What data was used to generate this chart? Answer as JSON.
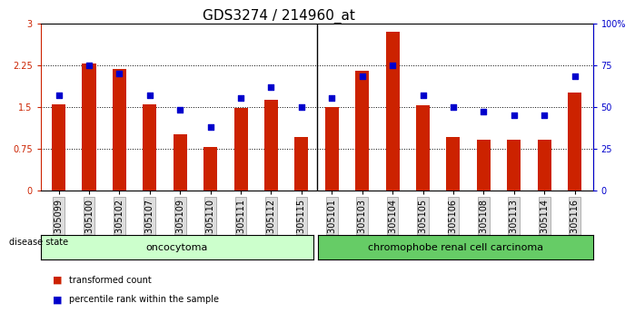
{
  "title": "GDS3274 / 214960_at",
  "samples": [
    "GSM305099",
    "GSM305100",
    "GSM305102",
    "GSM305107",
    "GSM305109",
    "GSM305110",
    "GSM305111",
    "GSM305112",
    "GSM305115",
    "GSM305101",
    "GSM305103",
    "GSM305104",
    "GSM305105",
    "GSM305106",
    "GSM305108",
    "GSM305113",
    "GSM305114",
    "GSM305116"
  ],
  "red_values": [
    1.55,
    2.28,
    2.18,
    1.54,
    1.0,
    0.78,
    1.48,
    1.62,
    0.95,
    1.5,
    2.15,
    2.85,
    1.52,
    0.95,
    0.9,
    0.9,
    0.9,
    1.75
  ],
  "blue_values_pct": [
    57,
    75,
    70,
    57,
    48,
    38,
    55,
    62,
    50,
    55,
    68,
    75,
    57,
    50,
    47,
    45,
    45,
    68
  ],
  "ylim_left": [
    0,
    3
  ],
  "ylim_right": [
    0,
    100
  ],
  "yticks_left": [
    0,
    0.75,
    1.5,
    2.25,
    3
  ],
  "yticks_right": [
    0,
    25,
    50,
    75,
    100
  ],
  "ytick_labels_left": [
    "0",
    "0.75",
    "1.5",
    "2.25",
    "3"
  ],
  "ytick_labels_right": [
    "0",
    "25",
    "50",
    "75",
    "100%"
  ],
  "bar_color": "#cc2200",
  "dot_color": "#0000cc",
  "grid_color": "#000000",
  "bg_color": "#ffffff",
  "oncocytoma_count": 9,
  "chromophobe_count": 9,
  "oncocytoma_color": "#ccffcc",
  "chromophobe_color": "#66cc66",
  "group_label_1": "oncocytoma",
  "group_label_2": "chromophobe renal cell carcinoma",
  "disease_state_label": "disease state",
  "legend_red": "transformed count",
  "legend_blue": "percentile rank within the sample",
  "title_fontsize": 11,
  "tick_fontsize": 7,
  "label_fontsize": 8
}
